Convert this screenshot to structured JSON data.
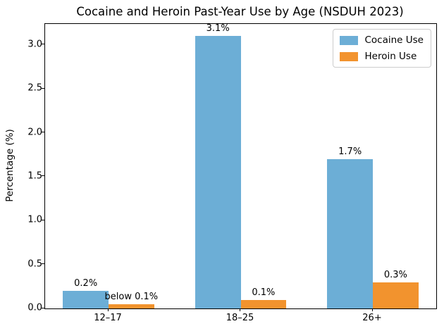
{
  "chart_data": {
    "type": "bar",
    "title": "Cocaine and Heroin Past-Year Use by Age (NSDUH 2023)",
    "xlabel": "",
    "ylabel": "Percentage (%)",
    "categories": [
      "12–17",
      "18–25",
      "26+"
    ],
    "series": [
      {
        "name": "Cocaine Use",
        "color": "#6caed6",
        "values": [
          0.2,
          3.1,
          1.7
        ],
        "labels": [
          "0.2%",
          "3.1%",
          "1.7%"
        ]
      },
      {
        "name": "Heroin Use",
        "color": "#f2932e",
        "values": [
          0.05,
          0.1,
          0.3
        ],
        "labels": [
          "below 0.1%",
          "0.1%",
          "0.3%"
        ]
      }
    ],
    "ylim": [
      0,
      3.24
    ],
    "yticks": [
      0.0,
      0.5,
      1.0,
      1.5,
      2.0,
      2.5,
      3.0
    ],
    "legend_position": "upper right",
    "grid": false,
    "spine_color": "#000000",
    "legend_border_color": "#cccccc"
  }
}
